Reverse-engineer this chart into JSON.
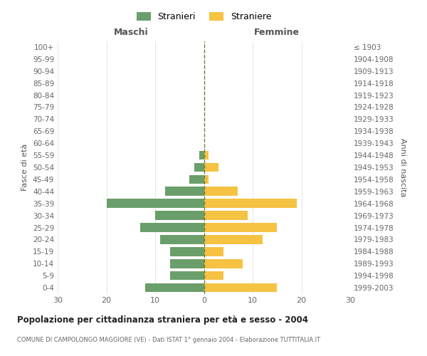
{
  "age_groups": [
    "0-4",
    "5-9",
    "10-14",
    "15-19",
    "20-24",
    "25-29",
    "30-34",
    "35-39",
    "40-44",
    "45-49",
    "50-54",
    "55-59",
    "60-64",
    "65-69",
    "70-74",
    "75-79",
    "80-84",
    "85-89",
    "90-94",
    "95-99",
    "100+"
  ],
  "birth_years": [
    "1999-2003",
    "1994-1998",
    "1989-1993",
    "1984-1988",
    "1979-1983",
    "1974-1978",
    "1969-1973",
    "1964-1968",
    "1959-1963",
    "1954-1958",
    "1949-1953",
    "1944-1948",
    "1939-1943",
    "1934-1938",
    "1929-1933",
    "1924-1928",
    "1919-1923",
    "1914-1918",
    "1909-1913",
    "1904-1908",
    "≤ 1903"
  ],
  "males": [
    12,
    7,
    7,
    7,
    9,
    13,
    10,
    20,
    8,
    3,
    2,
    1,
    0,
    0,
    0,
    0,
    0,
    0,
    0,
    0,
    0
  ],
  "females": [
    15,
    4,
    8,
    4,
    12,
    15,
    9,
    19,
    7,
    1,
    3,
    1,
    0,
    0,
    0,
    0,
    0,
    0,
    0,
    0,
    0
  ],
  "male_color": "#6a9e6a",
  "female_color": "#f5c242",
  "center_line_color": "#7a7a3a",
  "grid_color": "#cccccc",
  "title": "Popolazione per cittadinanza straniera per età e sesso - 2004",
  "subtitle": "COMUNE DI CAMPOLONGO MAGGIORE (VE) - Dati ISTAT 1° gennaio 2004 - Elaborazione TUTTITALIA.IT",
  "xlabel_left": "Maschi",
  "xlabel_right": "Femmine",
  "ylabel_left": "Fasce di età",
  "ylabel_right": "Anni di nascita",
  "legend_male": "Stranieri",
  "legend_female": "Straniere",
  "xlim": 30,
  "background_color": "#ffffff",
  "bar_height": 0.75
}
